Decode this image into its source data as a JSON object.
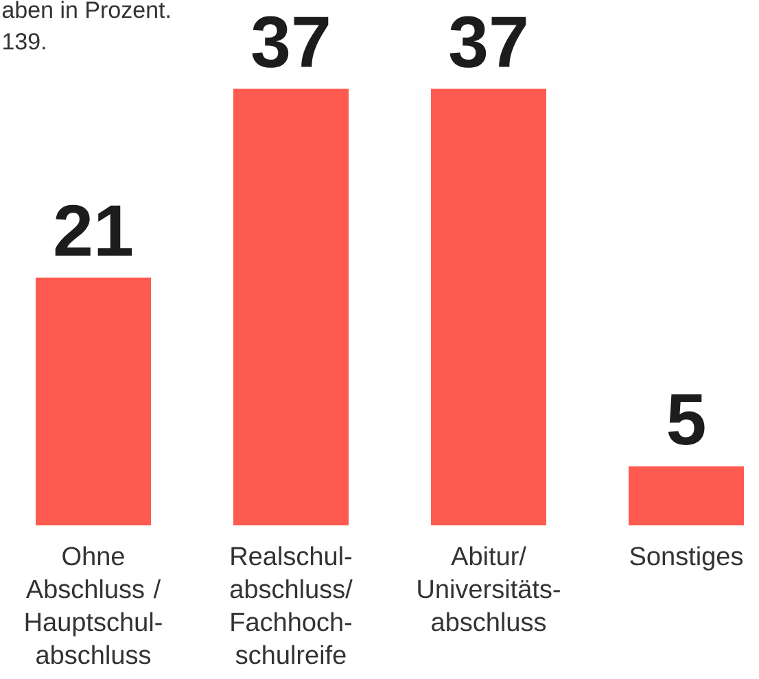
{
  "chart_data": {
    "type": "bar",
    "annotations": [
      "aben in Prozent.",
      "139."
    ],
    "categories": [
      "Ohne Abschluss / Hauptschul-abschluss",
      "Realschul-abschluss/ Fachhoch-schulreife",
      "Abitur/ Universitäts-abschluss",
      "Sonstiges"
    ],
    "values": [
      21,
      37,
      37,
      5
    ],
    "color": "#ff5a50",
    "data_labels": true,
    "tick_labels": "x"
  }
}
